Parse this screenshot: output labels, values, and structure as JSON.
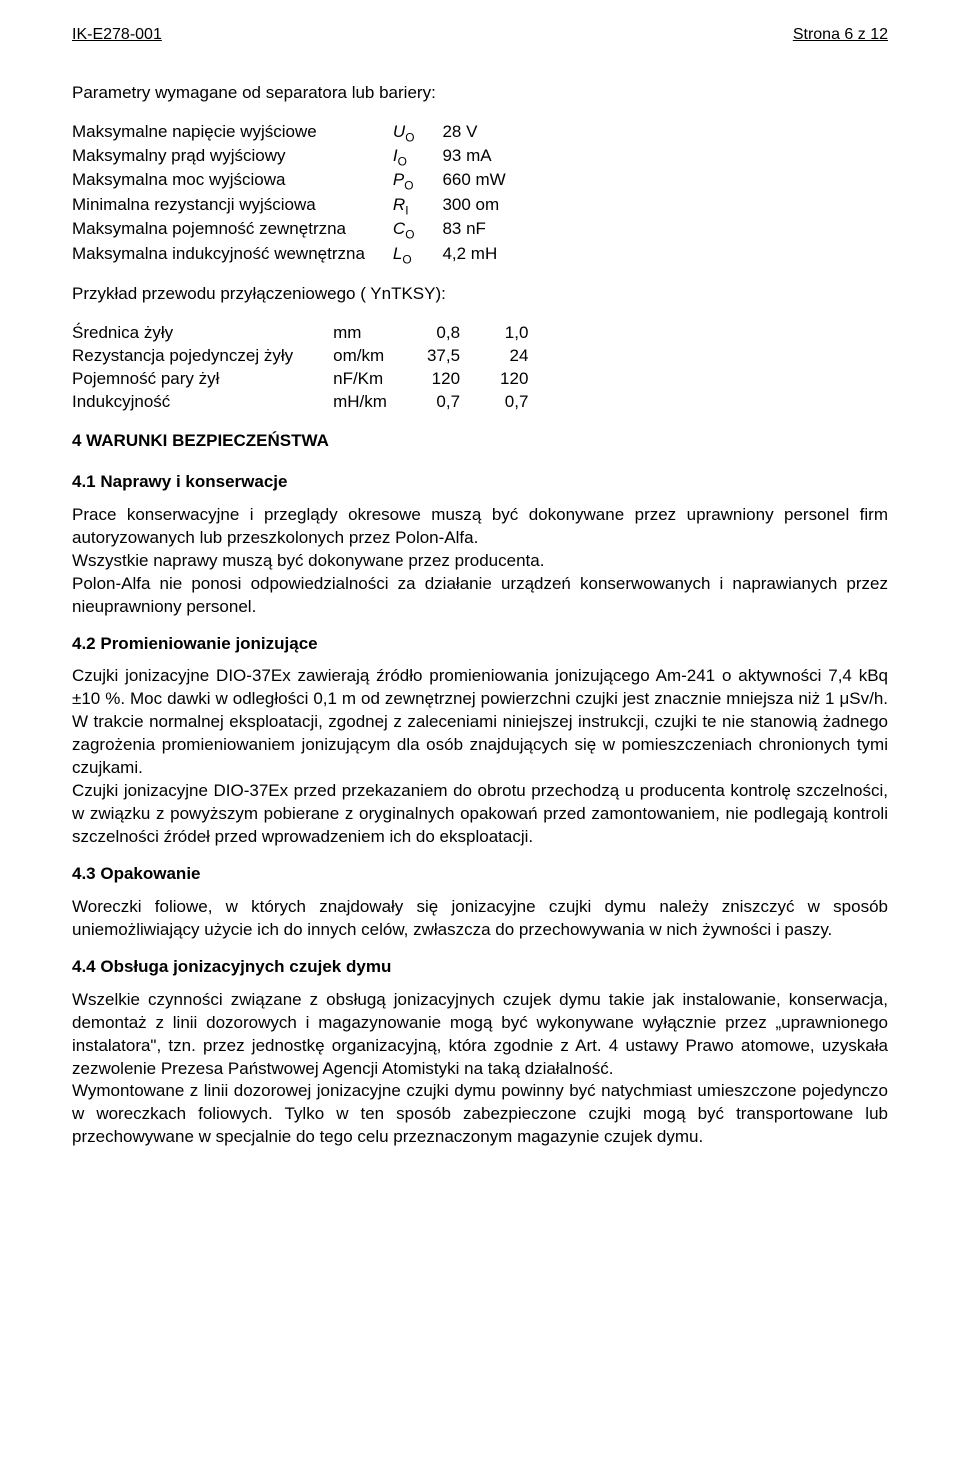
{
  "header": {
    "left": "IK-E278-001",
    "right": "Strona 6 z 12"
  },
  "intro": "Parametry wymagane od separatora lub bariery:",
  "params": [
    {
      "label": "Maksymalne napięcie wyjściowe",
      "sym": "U",
      "sub": "O",
      "val": "28 V"
    },
    {
      "label": "Maksymalny prąd wyjściowy",
      "sym": "I",
      "sub": "O",
      "val": "93 mA"
    },
    {
      "label": "Maksymalna moc wyjściowa",
      "sym": "P",
      "sub": "O",
      "val": "660 mW"
    },
    {
      "label": "Minimalna rezystancji wyjściowa",
      "sym": "R",
      "sub": "I",
      "val": "300 om"
    },
    {
      "label": "Maksymalna pojemność zewnętrzna",
      "sym": "C",
      "sub": "O",
      "val": "83 nF"
    },
    {
      "label": "Maksymalna indukcyjność wewnętrzna",
      "sym": "L",
      "sub": "O",
      "val": "4,2 mH"
    }
  ],
  "wire_intro": "Przykład przewodu przyłączeniowego ( YnTKSY):",
  "wire": [
    {
      "label": "Średnica żyły",
      "unit": "mm",
      "c1": "0,8",
      "c2": "1,0"
    },
    {
      "label": "Rezystancja pojedynczej żyły",
      "unit": "om/km",
      "c1": "37,5",
      "c2": "24"
    },
    {
      "label": "Pojemność pary żył",
      "unit": "nF/Km",
      "c1": "120",
      "c2": "120"
    },
    {
      "label": "Indukcyjność",
      "unit": "mH/km",
      "c1": "0,7",
      "c2": "0,7"
    }
  ],
  "sections": {
    "s4": {
      "title": "4  WARUNKI  BEZPIECZEŃSTWA"
    },
    "s41": {
      "title": "4.1 Naprawy i konserwacje",
      "p1": "Prace konserwacyjne i przeglądy okresowe muszą być dokonywane przez uprawniony personel firm autoryzowanych lub przeszkolonych przez Polon-Alfa.",
      "p2": "Wszystkie naprawy muszą być dokonywane przez producenta.",
      "p3": "Polon-Alfa nie ponosi odpowiedzialności za działanie urządzeń konserwowanych i naprawianych przez nieuprawniony personel."
    },
    "s42": {
      "title": "4.2  Promieniowanie jonizujące",
      "p1": "Czujki jonizacyjne DIO-37Ex zawierają źródło promieniowania jonizującego Am-241 o aktywności 7,4 kBq ±10 %.  Moc dawki w odległości 0,1 m od zewnętrznej powierzchni czujki jest znacznie mniejsza niż  1 μSv/h. W trakcie normalnej eksploatacji, zgodnej z zaleceniami niniejszej instrukcji, czujki te nie stanowią żadnego zagrożenia promieniowaniem jonizującym dla osób znajdujących się w pomieszczeniach chronionych tymi czujkami.",
      "p2": "Czujki jonizacyjne DIO-37Ex przed przekazaniem do obrotu przechodzą u producenta kontrolę szczelności, w związku z powyższym pobierane z oryginalnych opakowań przed zamontowaniem, nie podlegają kontroli szczelności źródeł przed wprowadzeniem ich do eksploatacji."
    },
    "s43": {
      "title": "4.3 Opakowanie",
      "p1": "Woreczki foliowe, w których znajdowały się jonizacyjne czujki dymu należy zniszczyć w sposób uniemożliwiający użycie ich do innych celów, zwłaszcza do przechowywania w nich żywności i paszy."
    },
    "s44": {
      "title": "4.4 Obsługa jonizacyjnych czujek dymu",
      "p1": "Wszelkie czynności związane z obsługą jonizacyjnych czujek dymu takie jak instalowanie, konserwacja, demontaż z linii dozorowych i magazynowanie mogą być wykonywane wyłącznie przez „uprawnionego instalatora\", tzn. przez jednostkę organizacyjną, która zgodnie z Art. 4 ustawy Prawo atomowe, uzyskała zezwolenie Prezesa Państwowej Agencji Atomistyki na taką działalność.",
      "p2": "Wymontowane z linii dozorowej jonizacyjne czujki dymu powinny być natychmiast umieszczone pojedynczo w woreczkach foliowych.  Tylko w ten sposób zabezpieczone czujki mogą być transportowane lub przechowywane w specjalnie do tego celu przeznaczonym magazynie czujek dymu."
    }
  }
}
